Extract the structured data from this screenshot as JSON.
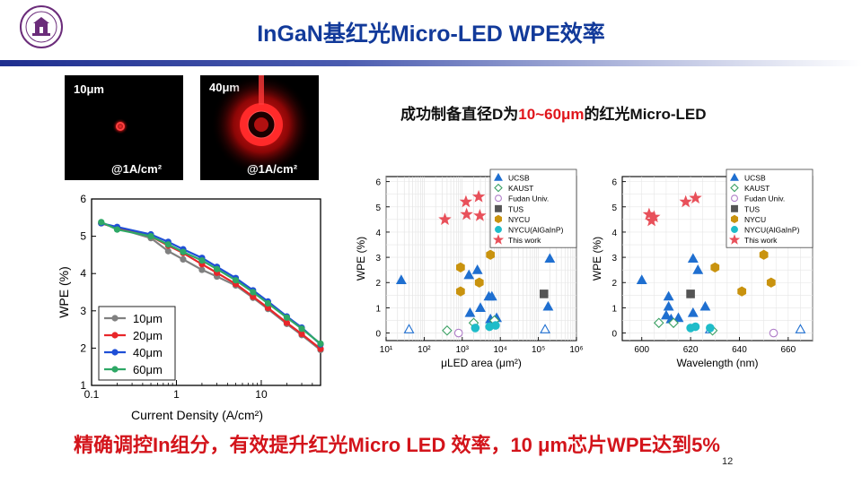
{
  "slide": {
    "title": "InGaN基红光Micro-LED WPE效率",
    "subtitle_pre": "成功制备直径D为",
    "subtitle_red": "10~60μm",
    "subtitle_post": "的红光Micro-LED",
    "conclusion": "精确调控In组分，有效提升红光Micro LED 效率，10 μm芯片WPE达到5%",
    "page_number": "12"
  },
  "micrographs": [
    {
      "size_label": "10μm",
      "current_label": "@1A/cm²"
    },
    {
      "size_label": "40μm",
      "current_label": "@1A/cm²"
    }
  ],
  "chart_data": [
    {
      "type": "line",
      "xlabel": "Current Density (A/cm²)",
      "ylabel": "WPE (%)",
      "xscale": "log",
      "xlim": [
        0.1,
        50
      ],
      "ylim": [
        1,
        6
      ],
      "xticks": [
        "0.1",
        "1",
        "10"
      ],
      "yticks": [
        "1",
        "2",
        "3",
        "4",
        "5",
        "6"
      ],
      "legend_position": "bottom-left",
      "series": [
        {
          "name": "10μm",
          "color": "#808080",
          "x": [
            0.13,
            0.2,
            0.5,
            0.8,
            1.2,
            2,
            3,
            5,
            8,
            12,
            20,
            30,
            50
          ],
          "y": [
            5.35,
            5.22,
            4.95,
            4.6,
            4.38,
            4.1,
            3.92,
            3.68,
            3.35,
            3.05,
            2.65,
            2.35,
            1.95
          ]
        },
        {
          "name": "20μm",
          "color": "#e8262a",
          "x": [
            0.13,
            0.2,
            0.5,
            0.8,
            1.2,
            2,
            3,
            5,
            8,
            12,
            20,
            30,
            50
          ],
          "y": [
            5.35,
            5.22,
            5.0,
            4.75,
            4.55,
            4.25,
            4.02,
            3.72,
            3.38,
            3.08,
            2.68,
            2.38,
            1.98
          ]
        },
        {
          "name": "40μm",
          "color": "#1f4fd6",
          "x": [
            0.13,
            0.2,
            0.5,
            0.8,
            1.2,
            2,
            3,
            5,
            8,
            12,
            20,
            30,
            50
          ],
          "y": [
            5.35,
            5.25,
            5.05,
            4.85,
            4.65,
            4.42,
            4.18,
            3.88,
            3.55,
            3.25,
            2.85,
            2.55,
            2.1
          ]
        },
        {
          "name": "60μm",
          "color": "#2ea866",
          "x": [
            0.13,
            0.2,
            0.5,
            0.8,
            1.2,
            2,
            3,
            5,
            8,
            12,
            20,
            30,
            50
          ],
          "y": [
            5.38,
            5.18,
            5.0,
            4.78,
            4.58,
            4.35,
            4.12,
            3.82,
            3.5,
            3.2,
            2.82,
            2.52,
            2.12
          ]
        }
      ]
    },
    {
      "type": "scatter",
      "xlabel": "μLED area (μm²)",
      "ylabel": "WPE (%)",
      "xscale": "log",
      "xlim": [
        10,
        1000000
      ],
      "ylim": [
        -0.3,
        6.2
      ],
      "xticks": [
        "10¹",
        "10²",
        "10³",
        "10⁴",
        "10⁵",
        "10⁶"
      ],
      "yticks": [
        "0",
        "1",
        "2",
        "3",
        "4",
        "5",
        "6"
      ],
      "legend_position": "top-right",
      "series": [
        {
          "name": "UCSB",
          "marker": "triangle",
          "color": "#1f6fd0",
          "filled": true,
          "x": [
            25,
            1500,
            2500,
            3000,
            5000,
            6000,
            8000,
            5500,
            1600,
            200000,
            180000
          ],
          "y": [
            2.1,
            2.3,
            2.5,
            1.0,
            1.45,
            1.45,
            0.6,
            0.55,
            0.8,
            2.95,
            1.05
          ]
        },
        {
          "name": "UCSB",
          "marker": "triangle",
          "color": "#1f6fd0",
          "filled": false,
          "x": [
            40,
            150000
          ],
          "y": [
            0.15,
            0.15
          ]
        },
        {
          "name": "KAUST",
          "marker": "diamond",
          "color": "#3aa063",
          "filled": false,
          "x": [
            400,
            2000,
            7000
          ],
          "y": [
            0.1,
            0.4,
            0.5
          ]
        },
        {
          "name": "Fudan Univ.",
          "marker": "circle",
          "color": "#b07ec9",
          "filled": false,
          "x": [
            800
          ],
          "y": [
            0.0
          ]
        },
        {
          "name": "TUS",
          "marker": "square",
          "color": "#555555",
          "filled": true,
          "x": [
            140000
          ],
          "y": [
            1.55
          ]
        },
        {
          "name": "NYCU",
          "marker": "hexagon",
          "color": "#c9930f",
          "filled": true,
          "x": [
            900,
            900,
            2800,
            5500
          ],
          "y": [
            2.6,
            1.65,
            2.0,
            3.1
          ]
        },
        {
          "name": "NYCU(AlGaInP)",
          "marker": "circle",
          "color": "#1fbcc9",
          "filled": true,
          "x": [
            2200,
            5200,
            7500
          ],
          "y": [
            0.2,
            0.25,
            0.3
          ]
        },
        {
          "name": "This work",
          "marker": "star",
          "color": "#e8505a",
          "filled": true,
          "x": [
            350,
            1250,
            1300,
            2700,
            2900
          ],
          "y": [
            4.5,
            5.2,
            4.7,
            5.4,
            4.65
          ]
        }
      ]
    },
    {
      "type": "scatter",
      "xlabel": "Wavelength (nm)",
      "ylabel": "WPE (%)",
      "xlim": [
        592,
        670
      ],
      "ylim": [
        -0.3,
        6.2
      ],
      "xticks": [
        "600",
        "620",
        "640",
        "660"
      ],
      "yticks": [
        "0",
        "1",
        "2",
        "3",
        "4",
        "5",
        "6"
      ],
      "legend_position": "top-right",
      "series": [
        {
          "name": "UCSB",
          "marker": "triangle",
          "color": "#1f6fd0",
          "filled": true,
          "x": [
            600,
            611,
            611,
            610,
            612,
            621,
            623,
            626,
            621,
            615
          ],
          "y": [
            2.1,
            1.45,
            1.05,
            0.7,
            0.55,
            2.95,
            2.5,
            1.05,
            0.8,
            0.6
          ]
        },
        {
          "name": "UCSB",
          "marker": "triangle",
          "color": "#1f6fd0",
          "filled": false,
          "x": [
            665,
            628
          ],
          "y": [
            0.15,
            0.15
          ]
        },
        {
          "name": "KAUST",
          "marker": "diamond",
          "color": "#3aa063",
          "filled": false,
          "x": [
            607,
            613,
            629
          ],
          "y": [
            0.4,
            0.4,
            0.1
          ]
        },
        {
          "name": "Fudan Univ.",
          "marker": "circle",
          "color": "#b07ec9",
          "filled": false,
          "x": [
            654
          ],
          "y": [
            0.0
          ]
        },
        {
          "name": "TUS",
          "marker": "square",
          "color": "#555555",
          "filled": true,
          "x": [
            620
          ],
          "y": [
            1.55
          ]
        },
        {
          "name": "NYCU",
          "marker": "hexagon",
          "color": "#c9930f",
          "filled": true,
          "x": [
            630,
            641,
            650,
            653
          ],
          "y": [
            2.6,
            1.65,
            3.1,
            2.0
          ]
        },
        {
          "name": "NYCU(AlGaInP)",
          "marker": "circle",
          "color": "#1fbcc9",
          "filled": true,
          "x": [
            620,
            622,
            628
          ],
          "y": [
            0.2,
            0.25,
            0.2
          ]
        },
        {
          "name": "This work",
          "marker": "star",
          "color": "#e8505a",
          "filled": true,
          "x": [
            603,
            604,
            605,
            618,
            622
          ],
          "y": [
            4.7,
            4.45,
            4.6,
            5.2,
            5.35
          ]
        }
      ]
    }
  ]
}
